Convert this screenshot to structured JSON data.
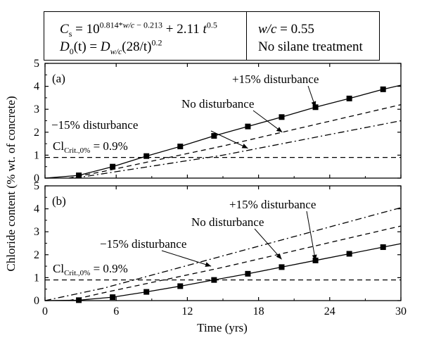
{
  "equations": {
    "cs_lhs": "C",
    "cs_lhs_sub": "s",
    "cs_eq_pre": " = 10",
    "cs_exp_coef": "0.814*",
    "cs_exp_var": "w/c",
    "cs_exp_tail": " − 0.213",
    "cs_plus": " + 2.11 ",
    "cs_t": "t",
    "cs_t_exp": "0.5",
    "d0_lhs": "D",
    "d0_lhs_sub": "0",
    "d0_arg": "(t)",
    "d0_eq": " = ",
    "d0_rhs": "D",
    "d0_rhs_sub": "w/c",
    "d0_tail": "(28/t)",
    "d0_exp": "0.2",
    "wc_var": "w/c",
    "wc_val": " = 0.55",
    "treatment": "No silane treatment"
  },
  "chart_data": [
    {
      "type": "line",
      "panel_label": "(a)",
      "xlim": [
        0,
        30
      ],
      "ylim": [
        0,
        5
      ],
      "x_ticks": [
        "0",
        "6",
        "12",
        "18",
        "24",
        "30"
      ],
      "y_ticks": [
        "0",
        "1",
        "2",
        "3",
        "4",
        "5"
      ],
      "series": [
        {
          "name": "+15% disturbance",
          "style": "solid-square-markers",
          "x": [
            0,
            2.85,
            5.7,
            8.55,
            11.4,
            14.25,
            17.1,
            19.95,
            22.8,
            25.65,
            28.5,
            30
          ],
          "y": [
            0.0,
            0.12,
            0.5,
            0.96,
            1.38,
            1.84,
            2.25,
            2.66,
            3.09,
            3.47,
            3.87,
            4.05
          ]
        },
        {
          "name": "No disturbance",
          "style": "dashed",
          "x": [
            2,
            5,
            10,
            15,
            20,
            25,
            30
          ],
          "y": [
            0.0,
            0.3,
            0.85,
            1.4,
            2.0,
            2.6,
            3.2
          ]
        },
        {
          "name": "−15% disturbance",
          "style": "dash-dot",
          "x": [
            2.5,
            5,
            10,
            15,
            20,
            25,
            30
          ],
          "y": [
            0.0,
            0.2,
            0.6,
            1.0,
            1.5,
            2.0,
            2.5
          ]
        },
        {
          "name": "threshold",
          "style": "dashed-horizontal",
          "x": [
            0,
            30
          ],
          "y": [
            0.9,
            0.9
          ]
        }
      ],
      "annotations": [
        {
          "text": "+15% disturbance",
          "points_to": [
            22.8,
            3.09
          ]
        },
        {
          "text": "No disturbance",
          "points_to": [
            20.0,
            2.0
          ]
        },
        {
          "text": "−15% disturbance",
          "points_to": [
            17.1,
            1.3
          ]
        }
      ],
      "threshold_label": {
        "main": "Cl",
        "sub": "Crit.,0%",
        "tail": " = 0.9%"
      }
    },
    {
      "type": "line",
      "panel_label": "(b)",
      "xlim": [
        0,
        30
      ],
      "ylim": [
        0,
        5
      ],
      "x_ticks": [
        "0",
        "6",
        "12",
        "18",
        "24",
        "30"
      ],
      "y_ticks": [
        "0",
        "1",
        "2",
        "3",
        "4",
        "5"
      ],
      "series": [
        {
          "name": "+15% disturbance",
          "style": "dash-dot",
          "x": [
            0,
            5,
            10,
            15,
            20,
            25,
            30
          ],
          "y": [
            0.0,
            0.55,
            1.25,
            1.95,
            2.65,
            3.35,
            4.05
          ]
        },
        {
          "name": "No disturbance",
          "style": "dashed",
          "x": [
            2,
            5,
            10,
            15,
            20,
            25,
            30
          ],
          "y": [
            0.0,
            0.35,
            0.9,
            1.45,
            2.05,
            2.65,
            3.25
          ]
        },
        {
          "name": "−15% disturbance",
          "style": "solid-square-markers",
          "x": [
            0,
            2.85,
            5.7,
            8.55,
            11.4,
            14.25,
            17.1,
            19.95,
            22.8,
            25.65,
            28.5,
            30
          ],
          "y": [
            0.0,
            0.02,
            0.15,
            0.38,
            0.63,
            0.9,
            1.17,
            1.46,
            1.75,
            2.04,
            2.33,
            2.48
          ]
        },
        {
          "name": "threshold",
          "style": "dashed-horizontal",
          "x": [
            0,
            30
          ],
          "y": [
            0.9,
            0.9
          ]
        }
      ],
      "annotations": [
        {
          "text": "+15% disturbance",
          "points_to": [
            22.8,
            1.75
          ]
        },
        {
          "text": "No disturbance",
          "points_to": [
            19.95,
            1.8
          ]
        },
        {
          "text": "−15% disturbance",
          "points_to": [
            14.0,
            1.5
          ]
        }
      ],
      "threshold_label": {
        "main": "Cl",
        "sub": "Crit.,0%",
        "tail": " = 0.9%"
      }
    }
  ],
  "axes": {
    "xlabel": "Time (yrs)",
    "ylabel": "Chloride content (% wt. of concrete)"
  }
}
